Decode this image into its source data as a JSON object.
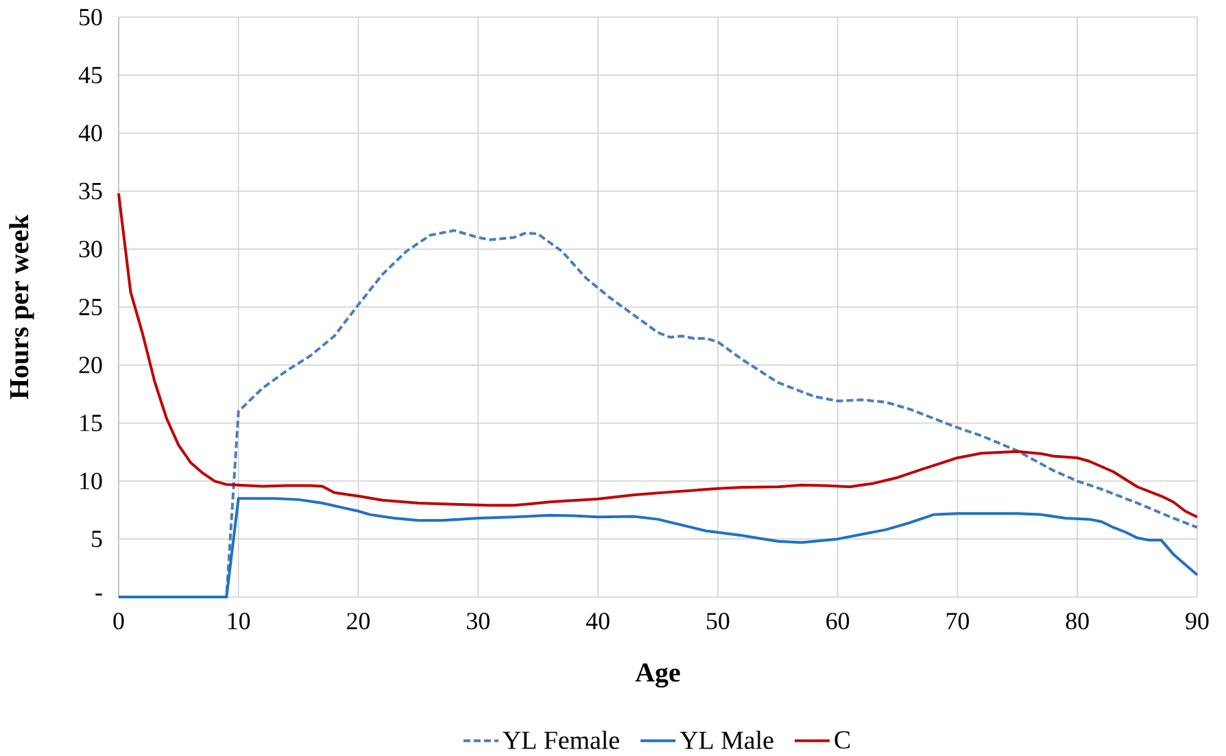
{
  "chart_data": {
    "type": "line",
    "xlabel": "Age",
    "ylabel": "Hours per week",
    "xlim": [
      0,
      90
    ],
    "ylim": [
      0,
      50
    ],
    "xticks": [
      0,
      10,
      20,
      30,
      40,
      50,
      60,
      70,
      80,
      90
    ],
    "yticks": [
      {
        "value": 0,
        "label": "-"
      },
      5,
      10,
      15,
      20,
      25,
      30,
      35,
      40,
      45,
      50
    ],
    "grid": true,
    "legend": "bottom",
    "series": [
      {
        "name": "YL Female",
        "color": "#4a7ebf",
        "line_style": "dashed",
        "x": [
          0,
          9,
          10,
          12,
          14,
          16,
          18,
          20,
          22,
          24,
          26,
          28,
          30,
          31,
          33,
          34,
          35,
          37,
          39,
          41,
          43,
          45,
          46,
          47,
          48,
          49,
          50,
          52,
          55,
          58,
          60,
          62,
          64,
          66,
          68,
          70,
          72,
          75,
          78,
          80,
          82,
          85,
          88,
          90
        ],
        "values": [
          0,
          0,
          16,
          18,
          19.5,
          20.8,
          22.5,
          25.2,
          27.8,
          29.8,
          31.2,
          31.6,
          31.0,
          30.8,
          31.0,
          31.4,
          31.3,
          29.8,
          27.5,
          25.8,
          24.3,
          22.8,
          22.4,
          22.5,
          22.3,
          22.3,
          22.0,
          20.5,
          18.5,
          17.3,
          16.9,
          17.0,
          16.8,
          16.2,
          15.4,
          14.6,
          13.9,
          12.6,
          10.9,
          10.0,
          9.3,
          8.1,
          6.8,
          6.0
        ]
      },
      {
        "name": "YL Male",
        "color": "#1f72c4",
        "line_style": "solid",
        "x": [
          0,
          9,
          10,
          13,
          15,
          17,
          20,
          21,
          23,
          25,
          27,
          30,
          33,
          36,
          38,
          40,
          43,
          45,
          47,
          49,
          52,
          55,
          57,
          60,
          62,
          64,
          66,
          68,
          70,
          75,
          77,
          79,
          81,
          82,
          83,
          84,
          85,
          86,
          87,
          88,
          90
        ],
        "values": [
          0,
          0,
          8.5,
          8.5,
          8.4,
          8.1,
          7.4,
          7.1,
          6.8,
          6.6,
          6.6,
          6.8,
          6.9,
          7.05,
          7.0,
          6.9,
          6.95,
          6.7,
          6.2,
          5.7,
          5.3,
          4.8,
          4.7,
          5.0,
          5.4,
          5.8,
          6.4,
          7.1,
          7.2,
          7.2,
          7.1,
          6.8,
          6.7,
          6.5,
          6.0,
          5.6,
          5.1,
          4.9,
          4.9,
          3.7,
          1.9
        ]
      },
      {
        "name": "C",
        "color": "#c00000",
        "line_style": "solid",
        "x": [
          0,
          1,
          2,
          3,
          4,
          5,
          6,
          7,
          8,
          9,
          10,
          12,
          14,
          16,
          17,
          18,
          20,
          22,
          25,
          28,
          31,
          33,
          36,
          40,
          43,
          46,
          50,
          52,
          55,
          57,
          59,
          61,
          63,
          65,
          67,
          70,
          72,
          75,
          77,
          78,
          80,
          81,
          83,
          85,
          87,
          88,
          89,
          90
        ],
        "values": [
          34.8,
          26.3,
          22.7,
          18.6,
          15.4,
          13.1,
          11.6,
          10.7,
          10.0,
          9.7,
          9.65,
          9.55,
          9.6,
          9.6,
          9.55,
          9.0,
          8.7,
          8.35,
          8.1,
          8.0,
          7.9,
          7.9,
          8.2,
          8.45,
          8.8,
          9.05,
          9.35,
          9.45,
          9.5,
          9.65,
          9.6,
          9.5,
          9.8,
          10.3,
          11.0,
          12.0,
          12.4,
          12.55,
          12.35,
          12.15,
          12.0,
          11.7,
          10.8,
          9.5,
          8.7,
          8.2,
          7.4,
          6.9
        ]
      }
    ]
  }
}
